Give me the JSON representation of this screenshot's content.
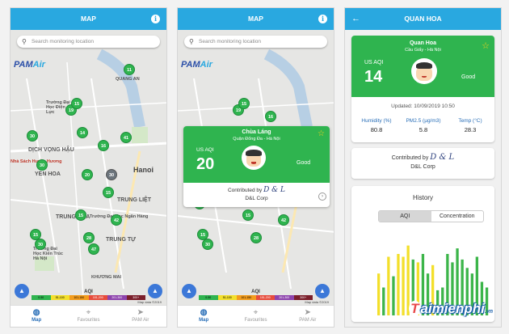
{
  "screen1": {
    "title": "MAP",
    "search_placeholder": "Search monitoring location",
    "logo_a": "PAM",
    "logo_b": "Air",
    "places": [
      "QUANG AN",
      "Trường Đại Học Điện Lực",
      "DỊCH VỌNG HẬU",
      "YEN HOA",
      "Hanoi",
      "TRUNG LIỆT",
      "Trường Đại Học Ngân Hàng",
      "TRUNG TỰ",
      "TRUNG HÒA",
      "Trường Đại Học Kiến Trúc Hà Nội",
      "KHƯƠNG MAI",
      "Nhà Sách Huyền Hương"
    ],
    "markers": [
      "11",
      "19",
      "15",
      "14",
      "41",
      "16",
      "30",
      "20",
      "30",
      "30",
      "15",
      "15",
      "42",
      "15",
      "28",
      "30",
      "47"
    ],
    "legend_title": "AQI",
    "legend": [
      "0-50",
      "51-100",
      "101-150",
      "151-200",
      "201-300",
      "300+"
    ],
    "credit": "Map data ©2019",
    "tabs": [
      "Map",
      "Favourites",
      "PAM Air"
    ]
  },
  "screen2": {
    "title": "MAP",
    "search_placeholder": "Search monitoring location",
    "station": "Chùa Láng",
    "address": "Quận Đống Đa - Hà Nội",
    "aqi_label": "US AQI",
    "aqi": "20",
    "status": "Good",
    "contributed_by": "Contributed by",
    "contributor_logo": "D & L",
    "contributor": "D&L Corp",
    "markers": [
      "19",
      "15",
      "16",
      "30",
      "15",
      "15",
      "42",
      "28",
      "30"
    ],
    "tabs": [
      "Map",
      "Favourites",
      "PAM Air"
    ]
  },
  "screen3": {
    "title": "QUAN HOA",
    "station": "Quan Hoa",
    "address": "Cầu Giấy - Hà Nội",
    "aqi_label": "US AQI",
    "aqi": "14",
    "status": "Good",
    "updated": "Updated: 10/09/2019 10:50",
    "metrics": [
      {
        "name": "Humidity (%)",
        "value": "80.8"
      },
      {
        "name": "PM2.5 (µg/m3)",
        "value": "5.8"
      },
      {
        "name": "Temp (°C)",
        "value": "28.3"
      }
    ],
    "contributed_by": "Contributed by",
    "contributor_logo": "D & L",
    "contributor": "D&L Corp",
    "history_title": "History",
    "history_tabs": [
      "AQI",
      "Concentration"
    ]
  },
  "chart_data": {
    "type": "bar",
    "colors": {
      "green": "#3cb54a",
      "yellow": "#f3df2b"
    },
    "values": [
      30,
      20,
      42,
      28,
      44,
      42,
      50,
      40,
      38,
      44,
      30,
      36,
      18,
      20,
      44,
      38,
      48,
      40,
      34,
      30,
      42,
      24,
      20
    ],
    "series_color": [
      "yellow",
      "green",
      "yellow",
      "green",
      "yellow",
      "yellow",
      "yellow",
      "green",
      "yellow",
      "green",
      "green",
      "yellow",
      "green",
      "green",
      "green",
      "green",
      "green",
      "green",
      "green",
      "green",
      "green",
      "green",
      "green"
    ]
  },
  "watermark": {
    "brand": "aimienphi",
    "suffix": ".vn"
  }
}
